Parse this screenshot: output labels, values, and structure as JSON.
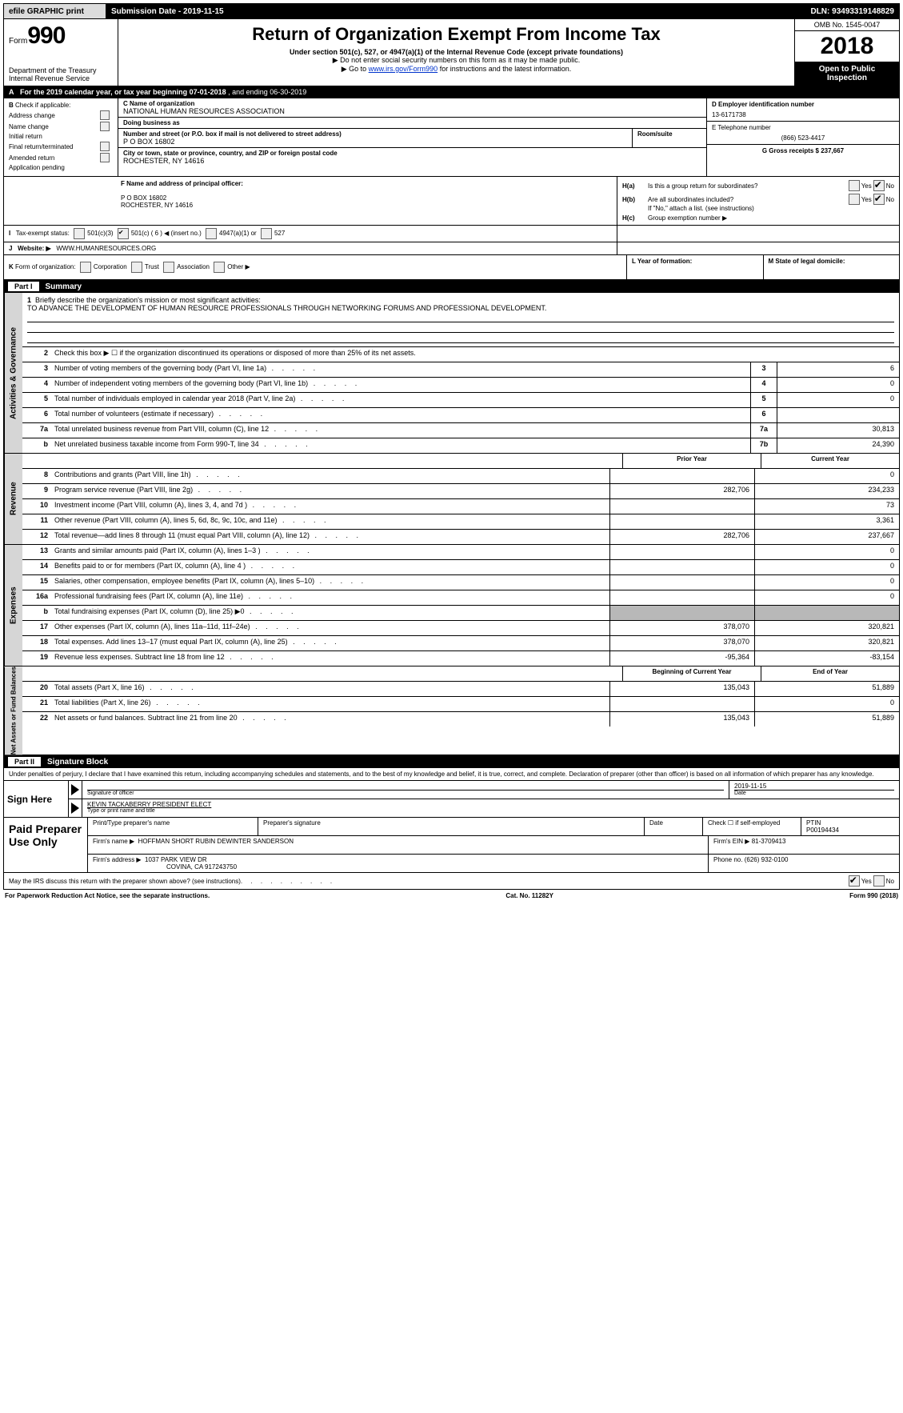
{
  "colors": {
    "black": "#000000",
    "white": "#ffffff",
    "gray_bg": "#d6d6d6",
    "shaded": "#b8b8b8",
    "link": "#0033cc"
  },
  "topbar": {
    "efile": "efile GRAPHIC print",
    "submission_label": "Submission Date - 2019-11-15",
    "dln": "DLN: 93493319148829"
  },
  "header": {
    "form_prefix": "Form",
    "form_number": "990",
    "dept": "Department of the Treasury",
    "irs": "Internal Revenue Service",
    "title": "Return of Organization Exempt From Income Tax",
    "subtitle": "Under section 501(c), 527, or 4947(a)(1) of the Internal Revenue Code (except private foundations)",
    "note1": "▶ Do not enter social security numbers on this form as it may be made public.",
    "note2_pre": "▶ Go to ",
    "note2_link": "www.irs.gov/Form990",
    "note2_post": " for instructions and the latest information.",
    "omb": "OMB No. 1545-0047",
    "year": "2018",
    "open": "Open to Public Inspection"
  },
  "line_a": {
    "prefix": "A",
    "text": "For the 2019 calendar year, or tax year beginning 07-01-2018",
    "mid": ", and ending 06-30-2019"
  },
  "section_b": {
    "label": "B",
    "intro": "Check if applicable:",
    "items": [
      "Address change",
      "Name change",
      "Initial return",
      "Final return/terminated",
      "Amended return",
      "Application pending"
    ]
  },
  "section_c": {
    "name_lbl": "C Name of organization",
    "name": "NATIONAL HUMAN RESOURCES ASSOCIATION",
    "dba_lbl": "Doing business as",
    "dba": "",
    "street_lbl": "Number and street (or P.O. box if mail is not delivered to street address)",
    "room_lbl": "Room/suite",
    "street": "P O BOX 16802",
    "city_lbl": "City or town, state or province, country, and ZIP or foreign postal code",
    "city": "ROCHESTER, NY  14616"
  },
  "section_d": {
    "d_lbl": "D Employer identification number",
    "d_val": "13-6171738",
    "e_lbl": "E Telephone number",
    "e_val": "(866) 523-4417",
    "g_lbl": "G Gross receipts $ 237,667"
  },
  "section_f": {
    "lbl": "F  Name and address of principal officer:",
    "line1": "P O BOX 16802",
    "line2": "ROCHESTER, NY  14616"
  },
  "section_h": {
    "ha": "H(a)",
    "ha_q": "Is this a group return for subordinates?",
    "hb": "H(b)",
    "hb_q": "Are all subordinates included?",
    "hb_note": "If \"No,\" attach a list. (see instructions)",
    "hc": "H(c)",
    "hc_q": "Group exemption number ▶",
    "yes": "Yes",
    "no": "No"
  },
  "line_i": {
    "lbl": "I",
    "text": "Tax-exempt status:",
    "o1": "501(c)(3)",
    "o2": "501(c) ( 6 ) ◀ (insert no.)",
    "o3": "4947(a)(1) or",
    "o4": "527"
  },
  "line_j": {
    "lbl": "J",
    "text": "Website: ▶",
    "val": "WWW.HUMANRESOURCES.ORG"
  },
  "line_k": {
    "lbl": "K",
    "text": "Form of organization:",
    "opts": [
      "Corporation",
      "Trust",
      "Association",
      "Other ▶"
    ]
  },
  "line_lm": {
    "l_lbl": "L Year of formation:",
    "m_lbl": "M State of legal domicile:"
  },
  "part1": {
    "label": "Part I",
    "title": "Summary"
  },
  "mission": {
    "num": "1",
    "lbl": "Briefly describe the organization's mission or most significant activities:",
    "text": "TO ADVANCE THE DEVELOPMENT OF HUMAN RESOURCE PROFESSIONALS THROUGH NETWORKING FORUMS AND PROFESSIONAL DEVELOPMENT."
  },
  "governance_lines": [
    {
      "num": "2",
      "desc": "Check this box ▶ ☐  if the organization discontinued its operations or disposed of more than 25% of its net assets."
    },
    {
      "num": "3",
      "desc": "Number of voting members of the governing body (Part VI, line 1a)",
      "box": "3",
      "val": "6"
    },
    {
      "num": "4",
      "desc": "Number of independent voting members of the governing body (Part VI, line 1b)",
      "box": "4",
      "val": "0"
    },
    {
      "num": "5",
      "desc": "Total number of individuals employed in calendar year 2018 (Part V, line 2a)",
      "box": "5",
      "val": "0"
    },
    {
      "num": "6",
      "desc": "Total number of volunteers (estimate if necessary)",
      "box": "6",
      "val": ""
    },
    {
      "num": "7a",
      "desc": "Total unrelated business revenue from Part VIII, column (C), line 12",
      "box": "7a",
      "val": "30,813"
    },
    {
      "num": "b",
      "desc": "Net unrelated business taxable income from Form 990-T, line 34",
      "box": "7b",
      "val": "24,390"
    }
  ],
  "col_headers": {
    "prior": "Prior Year",
    "current": "Current Year",
    "beg": "Beginning of Current Year",
    "end": "End of Year"
  },
  "revenue_lines": [
    {
      "num": "8",
      "desc": "Contributions and grants (Part VIII, line 1h)",
      "c1": "",
      "c2": "0"
    },
    {
      "num": "9",
      "desc": "Program service revenue (Part VIII, line 2g)",
      "c1": "282,706",
      "c2": "234,233"
    },
    {
      "num": "10",
      "desc": "Investment income (Part VIII, column (A), lines 3, 4, and 7d )",
      "c1": "",
      "c2": "73"
    },
    {
      "num": "11",
      "desc": "Other revenue (Part VIII, column (A), lines 5, 6d, 8c, 9c, 10c, and 11e)",
      "c1": "",
      "c2": "3,361"
    },
    {
      "num": "12",
      "desc": "Total revenue—add lines 8 through 11 (must equal Part VIII, column (A), line 12)",
      "c1": "282,706",
      "c2": "237,667"
    }
  ],
  "expense_lines": [
    {
      "num": "13",
      "desc": "Grants and similar amounts paid (Part IX, column (A), lines 1–3 )",
      "c1": "",
      "c2": "0"
    },
    {
      "num": "14",
      "desc": "Benefits paid to or for members (Part IX, column (A), line 4 )",
      "c1": "",
      "c2": "0"
    },
    {
      "num": "15",
      "desc": "Salaries, other compensation, employee benefits (Part IX, column (A), lines 5–10)",
      "c1": "",
      "c2": "0"
    },
    {
      "num": "16a",
      "desc": "Professional fundraising fees (Part IX, column (A), line 11e)",
      "c1": "",
      "c2": "0"
    },
    {
      "num": "b",
      "desc": "Total fundraising expenses (Part IX, column (D), line 25) ▶0",
      "c1": "shaded",
      "c2": "shaded"
    },
    {
      "num": "17",
      "desc": "Other expenses (Part IX, column (A), lines 11a–11d, 11f–24e)",
      "c1": "378,070",
      "c2": "320,821"
    },
    {
      "num": "18",
      "desc": "Total expenses. Add lines 13–17 (must equal Part IX, column (A), line 25)",
      "c1": "378,070",
      "c2": "320,821"
    },
    {
      "num": "19",
      "desc": "Revenue less expenses. Subtract line 18 from line 12",
      "c1": "-95,364",
      "c2": "-83,154"
    }
  ],
  "netassets_lines": [
    {
      "num": "20",
      "desc": "Total assets (Part X, line 16)",
      "c1": "135,043",
      "c2": "51,889"
    },
    {
      "num": "21",
      "desc": "Total liabilities (Part X, line 26)",
      "c1": "",
      "c2": "0"
    },
    {
      "num": "22",
      "desc": "Net assets or fund balances. Subtract line 21 from line 20",
      "c1": "135,043",
      "c2": "51,889"
    }
  ],
  "vtabs": {
    "gov": "Activities & Governance",
    "rev": "Revenue",
    "exp": "Expenses",
    "net": "Net Assets or Fund Balances"
  },
  "part2": {
    "label": "Part II",
    "title": "Signature Block"
  },
  "sig": {
    "penalty": "Under penalties of perjury, I declare that I have examined this return, including accompanying schedules and statements, and to the best of my knowledge and belief, it is true, correct, and complete. Declaration of preparer (other than officer) is based on all information of which preparer has any knowledge.",
    "sign_here": "Sign Here",
    "sig_officer": "Signature of officer",
    "date_val": "2019-11-15",
    "date_lbl": "Date",
    "name_title": "KEVIN TACKABERRY  PRESIDENT ELECT",
    "name_lbl": "Type or print name and title"
  },
  "prep": {
    "label": "Paid Preparer Use Only",
    "h1": "Print/Type preparer's name",
    "h2": "Preparer's signature",
    "h3": "Date",
    "h4_pre": "Check ☐ if self-employed",
    "h5": "PTIN",
    "ptin": "P00194434",
    "firm_name_lbl": "Firm's name    ▶",
    "firm_name": "HOFFMAN SHORT RUBIN DEWINTER SANDERSON",
    "firm_ein_lbl": "Firm's EIN ▶",
    "firm_ein": "81-3709413",
    "firm_addr_lbl": "Firm's address ▶",
    "firm_addr1": "1037 PARK VIEW DR",
    "firm_addr2": "COVINA, CA  917243750",
    "phone_lbl": "Phone no.",
    "phone": "(626) 932-0100"
  },
  "discuss": {
    "text": "May the IRS discuss this return with the preparer shown above? (see instructions)",
    "yes": "Yes",
    "no": "No"
  },
  "footer": {
    "left": "For Paperwork Reduction Act Notice, see the separate instructions.",
    "mid": "Cat. No. 11282Y",
    "right": "Form 990 (2018)"
  }
}
